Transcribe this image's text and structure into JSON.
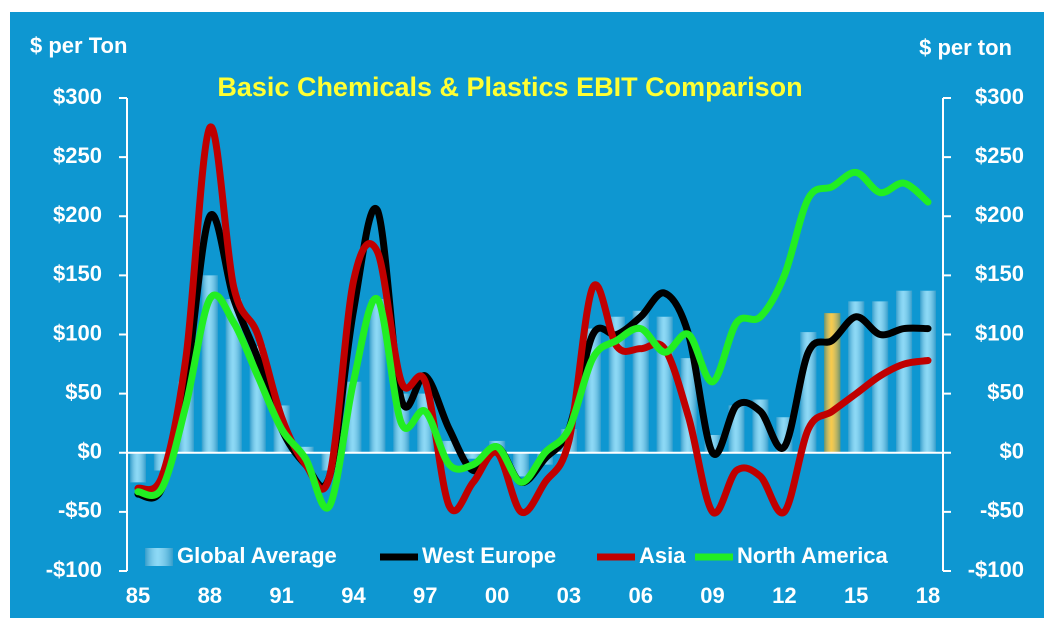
{
  "chart_data": {
    "type": "bar",
    "title": "Basic Chemicals & Plastics EBIT Comparison",
    "y_label": "$ per Ton",
    "y2_label": "$ per ton",
    "categories": [
      "85",
      null,
      null,
      "88",
      null,
      null,
      "91",
      null,
      null,
      "94",
      null,
      null,
      "97",
      null,
      null,
      "00",
      null,
      null,
      "03",
      null,
      null,
      "06",
      null,
      null,
      "09",
      null,
      null,
      "12",
      null,
      null,
      "15",
      null,
      null,
      "18"
    ],
    "ylim": [
      -100,
      300
    ],
    "yticks": [
      {
        "value": -100,
        "label": "-$100"
      },
      {
        "value": -50,
        "label": "-$50"
      },
      {
        "value": 0,
        "label": "$0"
      },
      {
        "value": 50,
        "label": "$50"
      },
      {
        "value": 100,
        "label": "$100"
      },
      {
        "value": 150,
        "label": "$150"
      },
      {
        "value": 200,
        "label": "$200"
      },
      {
        "value": 250,
        "label": "$250"
      },
      {
        "value": 300,
        "label": "$300"
      }
    ],
    "y2lim": [
      -100,
      300
    ],
    "y2ticks": [
      {
        "value": -100,
        "label": "-$100"
      },
      {
        "value": -50,
        "label": "-$50"
      },
      {
        "value": 0,
        "label": "$0"
      },
      {
        "value": 50,
        "label": "$50"
      },
      {
        "value": 100,
        "label": "$100"
      },
      {
        "value": 150,
        "label": "$150"
      },
      {
        "value": 200,
        "label": "$200"
      },
      {
        "value": 250,
        "label": "$250"
      },
      {
        "value": 300,
        "label": "$300"
      }
    ],
    "legend": "bottom",
    "series": [
      {
        "name": "Global Average",
        "type": "bar",
        "color": "#5cc9f2",
        "colors": [
          "#5cc9f2",
          "#5cc9f2",
          "#5cc9f2",
          "#5cc9f2",
          "#5cc9f2",
          "#5cc9f2",
          "#5cc9f2",
          "#5cc9f2",
          "#5cc9f2",
          "#5cc9f2",
          "#5cc9f2",
          "#5cc9f2",
          "#5cc9f2",
          "#5cc9f2",
          "#5cc9f2",
          "#5cc9f2",
          "#5cc9f2",
          "#5cc9f2",
          "#5cc9f2",
          "#5cc9f2",
          "#5cc9f2",
          "#5cc9f2",
          "#5cc9f2",
          "#5cc9f2",
          "#5cc9f2",
          "#5cc9f2",
          "#5cc9f2",
          "#5cc9f2",
          "#5cc9f2",
          "#f4b400",
          "#5cc9f2",
          "#5cc9f2",
          "#5cc9f2",
          "#5cc9f2"
        ],
        "values": [
          -25,
          -15,
          60,
          150,
          130,
          90,
          40,
          5,
          -15,
          60,
          130,
          50,
          50,
          10,
          -5,
          10,
          -20,
          -10,
          20,
          105,
          115,
          120,
          115,
          80,
          15,
          40,
          45,
          30,
          102,
          118,
          128,
          128,
          137,
          137
        ]
      },
      {
        "name": "West Europe",
        "type": "line",
        "color": "#000000",
        "values": [
          -35,
          -30,
          60,
          200,
          130,
          80,
          20,
          -10,
          -20,
          120,
          205,
          45,
          65,
          20,
          -15,
          5,
          -25,
          -5,
          20,
          100,
          100,
          115,
          135,
          100,
          0,
          40,
          35,
          5,
          85,
          95,
          115,
          100,
          105,
          105
        ]
      },
      {
        "name": "Asia",
        "type": "line",
        "color": "#c00000",
        "values": [
          -30,
          -20,
          80,
          275,
          140,
          100,
          30,
          -10,
          -20,
          145,
          170,
          60,
          60,
          -45,
          -25,
          0,
          -50,
          -25,
          10,
          140,
          90,
          88,
          88,
          30,
          -50,
          -15,
          -20,
          -50,
          20,
          35,
          50,
          65,
          75,
          78
        ]
      },
      {
        "name": "North America",
        "type": "line",
        "color": "#22ee22",
        "values": [
          -33,
          -30,
          40,
          130,
          110,
          65,
          20,
          -5,
          -45,
          60,
          130,
          25,
          35,
          -10,
          -10,
          5,
          -25,
          0,
          20,
          80,
          95,
          105,
          85,
          100,
          60,
          110,
          115,
          150,
          215,
          225,
          237,
          220,
          228,
          212
        ]
      }
    ]
  }
}
